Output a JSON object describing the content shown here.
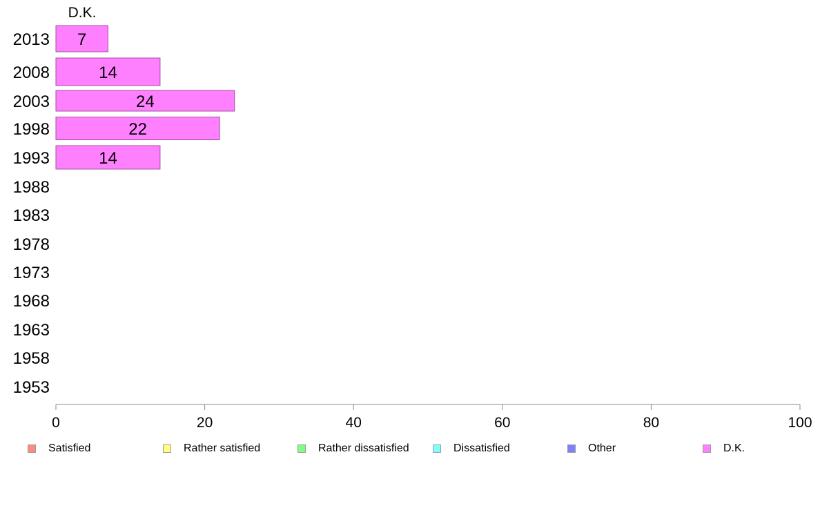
{
  "chart_data": {
    "type": "bar",
    "orientation": "horizontal",
    "stacked": true,
    "categories": [
      "2013",
      "2008",
      "2003",
      "1998",
      "1993",
      "1988",
      "1983",
      "1978",
      "1973",
      "1968",
      "1963",
      "1958",
      "1953"
    ],
    "series": [
      {
        "name": "Satisfied",
        "color": "#ff8a80",
        "values": [
          null,
          null,
          null,
          null,
          null,
          null,
          null,
          null,
          null,
          null,
          null,
          null,
          null
        ]
      },
      {
        "name": "Rather satisfied",
        "color": "#ffff80",
        "values": [
          null,
          null,
          null,
          null,
          null,
          null,
          null,
          null,
          null,
          null,
          null,
          null,
          null
        ]
      },
      {
        "name": "Rather dissatisfied",
        "color": "#80ff80",
        "values": [
          null,
          null,
          null,
          null,
          null,
          null,
          null,
          null,
          null,
          null,
          null,
          null,
          null
        ]
      },
      {
        "name": "Dissatisfied",
        "color": "#80ffff",
        "values": [
          null,
          null,
          null,
          null,
          null,
          null,
          null,
          null,
          null,
          null,
          null,
          null,
          null
        ]
      },
      {
        "name": "Other",
        "color": "#8080ff",
        "values": [
          null,
          null,
          null,
          null,
          null,
          null,
          null,
          null,
          null,
          null,
          null,
          null,
          null
        ]
      },
      {
        "name": "D.K.",
        "color": "#ff80ff",
        "values": [
          7,
          14,
          24,
          22,
          14,
          null,
          null,
          null,
          null,
          null,
          null,
          null,
          null
        ]
      }
    ],
    "series_title": "D.K.",
    "xlim": [
      0,
      100
    ],
    "xticks": [
      "0",
      "20",
      "40",
      "60",
      "80",
      "100"
    ],
    "grid": false,
    "legend": "bottom"
  }
}
